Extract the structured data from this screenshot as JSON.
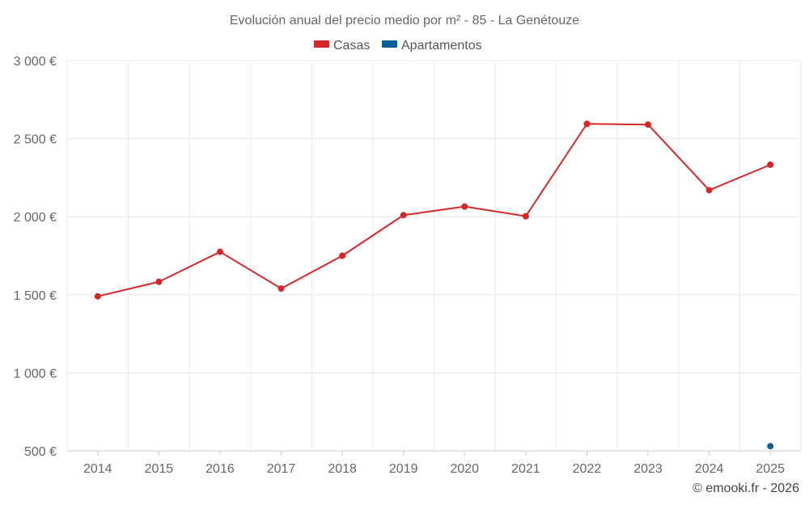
{
  "chart_data": {
    "type": "line",
    "title": "Evolución anual del precio medio por m² - 85 - La Genétouze",
    "categories": [
      "2014",
      "2015",
      "2016",
      "2017",
      "2018",
      "2019",
      "2020",
      "2021",
      "2022",
      "2023",
      "2024",
      "2025"
    ],
    "series": [
      {
        "name": "Casas",
        "color": "#d62728",
        "values": [
          1490,
          1583,
          1775,
          1540,
          1750,
          2010,
          2065,
          2003,
          2595,
          2590,
          2170,
          2333
        ]
      },
      {
        "name": "Apartamentos",
        "color": "#0a5f99",
        "values": [
          null,
          null,
          null,
          null,
          null,
          null,
          null,
          null,
          null,
          null,
          null,
          530
        ]
      }
    ],
    "yticks": [
      "500 €",
      "1 000 €",
      "1 500 €",
      "2 000 €",
      "2 500 €",
      "3 000 €"
    ],
    "ytick_values": [
      500,
      1000,
      1500,
      2000,
      2500,
      3000
    ],
    "ylim": [
      500,
      3000
    ],
    "grid": true,
    "legend_position": "top-center"
  },
  "credit": "© emooki.fr - 2026"
}
